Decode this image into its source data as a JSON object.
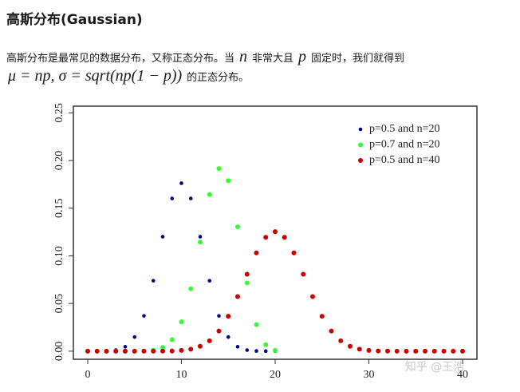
{
  "header": {
    "title": "高斯分布(Gaussian)"
  },
  "paragraph": {
    "line1": [
      "高斯分布是最常见的数据分布，又称正态分布。当",
      "n",
      "非常大且",
      "p",
      "固定时，我们就得到"
    ],
    "line2": [
      "μ = np, σ = sqrt(np(1 − p))",
      "的正态分布。"
    ]
  },
  "chart_data": {
    "type": "scatter",
    "xlim": [
      -1.53,
      41.53
    ],
    "ylim": [
      -0.0085,
      0.257
    ],
    "xticks": [
      0,
      10,
      20,
      30,
      40
    ],
    "yticks": [
      {
        "value": 0,
        "label": "0.00"
      },
      0.05,
      {
        "value": 0.1,
        "label": "0.10"
      },
      0.15,
      {
        "value": 0.2,
        "label": "0.20"
      },
      0.25
    ],
    "legend": "top-right",
    "series": [
      {
        "name": "p=0.5 and n=20",
        "color": "#00008b",
        "x": [
          0,
          1,
          2,
          3,
          4,
          5,
          6,
          7,
          8,
          9,
          10,
          11,
          12,
          13,
          14,
          15,
          16,
          17,
          18,
          19,
          20
        ],
        "values": [
          0,
          0,
          0.0002,
          0.0011,
          0.0046,
          0.0148,
          0.037,
          0.0739,
          0.1201,
          0.1602,
          0.1762,
          0.1602,
          0.1201,
          0.0739,
          0.037,
          0.0148,
          0.0046,
          0.0011,
          0.0002,
          0,
          0
        ]
      },
      {
        "name": "p=0.7 and n=20",
        "color": "#33ff33",
        "x": [
          0,
          1,
          2,
          3,
          4,
          5,
          6,
          7,
          8,
          9,
          10,
          11,
          12,
          13,
          14,
          15,
          16,
          17,
          18,
          19,
          20
        ],
        "values": [
          0,
          0,
          0,
          0,
          0,
          0,
          0.0002,
          0.001,
          0.0039,
          0.012,
          0.0308,
          0.0654,
          0.1144,
          0.1643,
          0.1916,
          0.1789,
          0.1304,
          0.0716,
          0.0278,
          0.0068,
          0.0008
        ]
      },
      {
        "name": "p=0.5 and n=40",
        "color": "#cc0000",
        "x": [
          0,
          1,
          2,
          3,
          4,
          5,
          6,
          7,
          8,
          9,
          10,
          11,
          12,
          13,
          14,
          15,
          16,
          17,
          18,
          19,
          20,
          21,
          22,
          23,
          24,
          25,
          26,
          27,
          28,
          29,
          30,
          31,
          32,
          33,
          34,
          35,
          36,
          37,
          38,
          39,
          40
        ],
        "values": [
          0,
          0,
          0,
          0,
          0,
          0,
          0,
          0,
          0.0001,
          0.0002,
          0.0008,
          0.0021,
          0.0051,
          0.0109,
          0.0211,
          0.0366,
          0.0572,
          0.0807,
          0.1031,
          0.1194,
          0.1254,
          0.1194,
          0.1031,
          0.0807,
          0.0572,
          0.0366,
          0.0211,
          0.0109,
          0.0051,
          0.0021,
          0.0008,
          0.0002,
          0.0001,
          0,
          0,
          0,
          0,
          0,
          0,
          0,
          0
        ]
      }
    ]
  },
  "watermark": "知乎 @王浩"
}
